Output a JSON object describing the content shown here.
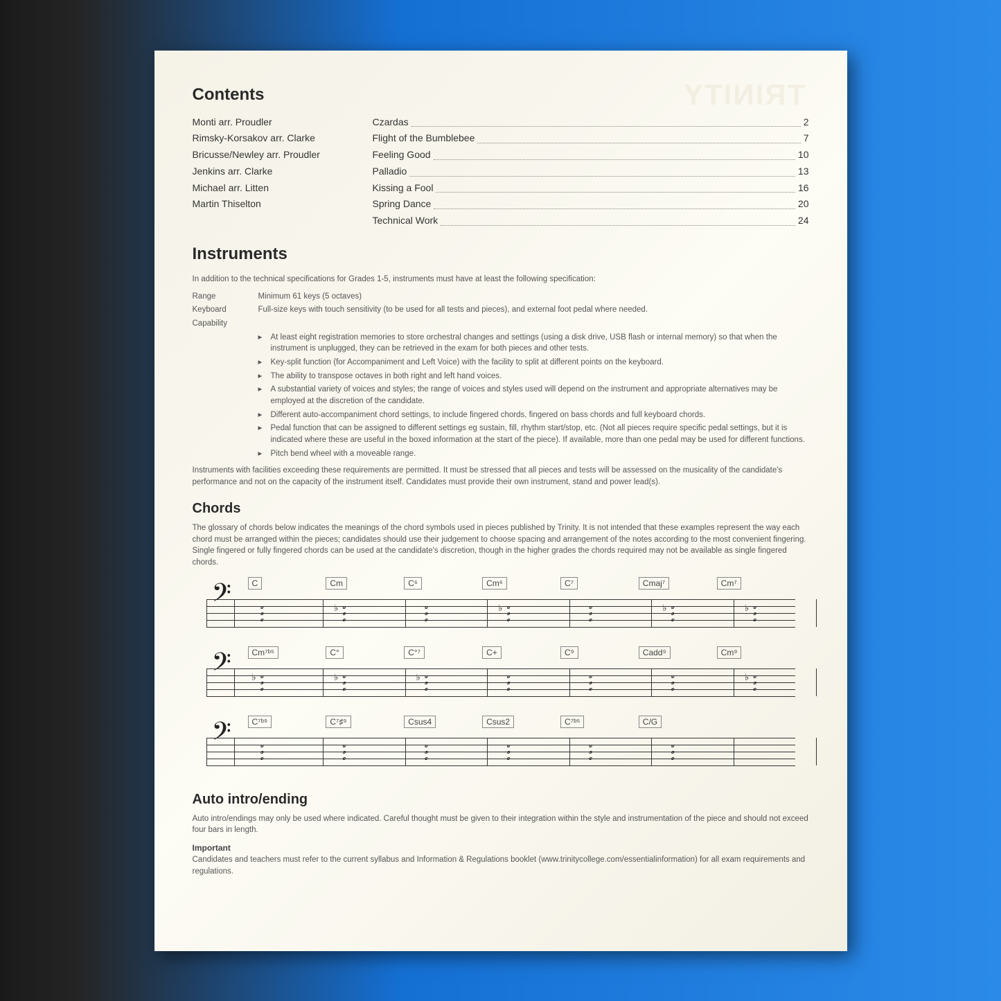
{
  "watermark": "TRINITY",
  "sections": {
    "contents_title": "Contents",
    "instruments_title": "Instruments",
    "chords_title": "Chords",
    "auto_title": "Auto intro/ending",
    "important_label": "Important"
  },
  "toc": [
    {
      "composer": "Monti arr. Proudler",
      "title": "Czardas",
      "page": "2"
    },
    {
      "composer": "Rimsky-Korsakov arr. Clarke",
      "title": "Flight of the Bumblebee",
      "page": "7"
    },
    {
      "composer": "Bricusse/Newley arr. Proudler",
      "title": "Feeling Good",
      "page": "10"
    },
    {
      "composer": "Jenkins arr. Clarke",
      "title": "Palladio",
      "page": "13"
    },
    {
      "composer": "Michael arr. Litten",
      "title": "Kissing a Fool",
      "page": "16"
    },
    {
      "composer": "Martin Thiselton",
      "title": "Spring Dance",
      "page": "20"
    },
    {
      "composer": "",
      "title": "Technical Work",
      "page": "24"
    }
  ],
  "instruments": {
    "intro": "In addition to the technical specifications for Grades 1-5, instruments must have at least the following specification:",
    "specs": [
      {
        "label": "Range",
        "value": "Minimum 61 keys (5 octaves)"
      },
      {
        "label": "Keyboard",
        "value": "Full-size keys with touch sensitivity (to be used for all tests and pieces), and external foot pedal where needed."
      },
      {
        "label": "Capability",
        "value": ""
      }
    ],
    "bullets": [
      "At least eight registration memories to store orchestral changes and settings (using a disk drive, USB flash or internal memory) so that when the instrument is unplugged, they can be retrieved in the exam for both pieces and other tests.",
      "Key-split function (for Accompaniment and Left Voice) with the facility to split at different points on the keyboard.",
      "The ability to transpose octaves in both right and left hand voices.",
      "A substantial variety of voices and styles; the range of voices and styles used will depend on the instrument and appropriate alternatives may be employed at the discretion of the candidate.",
      "Different auto-accompaniment chord settings, to include fingered chords, fingered on bass chords and full keyboard chords.",
      "Pedal function that can be assigned to different settings eg sustain, fill, rhythm start/stop, etc. (Not all pieces require specific pedal settings, but it is indicated where these are useful in the boxed information at the start of the piece). If available, more than one pedal may be used for different functions.",
      "Pitch bend wheel with a moveable range."
    ],
    "outro": "Instruments with facilities exceeding these requirements are permitted. It must be stressed that all pieces and tests will be assessed on the musicality of the candidate's performance and not on the capacity of the instrument itself. Candidates must provide their own instrument, stand and power lead(s)."
  },
  "chords": {
    "intro": "The glossary of chords below indicates the meanings of the chord symbols used in pieces published by Trinity. It is not intended that these examples represent the way each chord must be arranged within the pieces; candidates should use their judgement to choose spacing and arrangement of the notes according to the most convenient fingering. Single fingered or fully fingered chords can be used at the candidate's discretion, though in the higher grades the chords required may not be available as single fingered chords.",
    "rows": [
      [
        "C",
        "Cm",
        "C⁶",
        "Cm⁶",
        "C⁷",
        "Cmaj⁷",
        "Cm⁷"
      ],
      [
        "Cm⁷ᵇ⁵",
        "C°",
        "C°⁷",
        "C+",
        "C⁹",
        "Cadd⁹",
        "Cm⁹"
      ],
      [
        "C⁷ᵇ⁹",
        "C⁷♯⁹",
        "Csus4",
        "Csus2",
        "C⁷ᵇ⁵",
        "C/G",
        ""
      ]
    ]
  },
  "auto": {
    "text": "Auto intro/endings may only be used where indicated. Careful thought must be given to their integration within the style and instrumentation of the piece and should not exceed four bars in length."
  },
  "important": {
    "text": "Candidates and teachers must refer to the current syllabus and Information & Regulations booklet (www.trinitycollege.com/essentialinformation) for all exam requirements and regulations."
  },
  "colors": {
    "page_bg": "#f8f6ed",
    "text": "#3a3a3a",
    "muted": "#555555",
    "line": "#333333"
  }
}
